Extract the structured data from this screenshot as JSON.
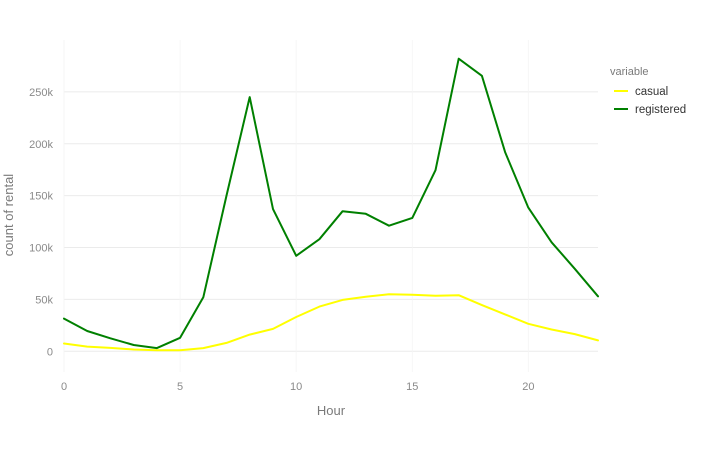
{
  "chart_data": {
    "type": "line",
    "xlabel": "Hour",
    "ylabel": "count of rental",
    "xlim": [
      0,
      23
    ],
    "ylim": [
      -20000,
      300000
    ],
    "x_ticks": [
      0,
      5,
      10,
      15,
      20
    ],
    "x_tick_labels": [
      "0",
      "5",
      "10",
      "15",
      "20"
    ],
    "y_ticks": [
      0,
      50000,
      100000,
      150000,
      200000,
      250000
    ],
    "y_tick_labels": [
      "0",
      "50k",
      "100k",
      "150k",
      "200k",
      "250k"
    ],
    "grid": true,
    "legend": {
      "title": "variable",
      "position": "right"
    },
    "x": [
      0,
      1,
      2,
      3,
      4,
      5,
      6,
      7,
      8,
      9,
      10,
      11,
      12,
      13,
      14,
      15,
      16,
      17,
      18,
      19,
      20,
      21,
      22,
      23
    ],
    "series": [
      {
        "name": "casual",
        "color": "#ffff00",
        "values": [
          7500,
          4500,
          3200,
          1700,
          900,
          1000,
          3000,
          8000,
          16000,
          21500,
          33000,
          43000,
          49500,
          52500,
          55000,
          54500,
          53500,
          54000,
          44500,
          35500,
          26500,
          21000,
          16500,
          10500
        ]
      },
      {
        "name": "registered",
        "color": "#008000",
        "values": [
          31500,
          19500,
          12500,
          6000,
          3000,
          13000,
          52000,
          150000,
          245000,
          137000,
          92000,
          108000,
          135000,
          132500,
          121000,
          128500,
          174500,
          282000,
          265500,
          192000,
          138500,
          105000,
          79500,
          53000
        ]
      }
    ]
  }
}
